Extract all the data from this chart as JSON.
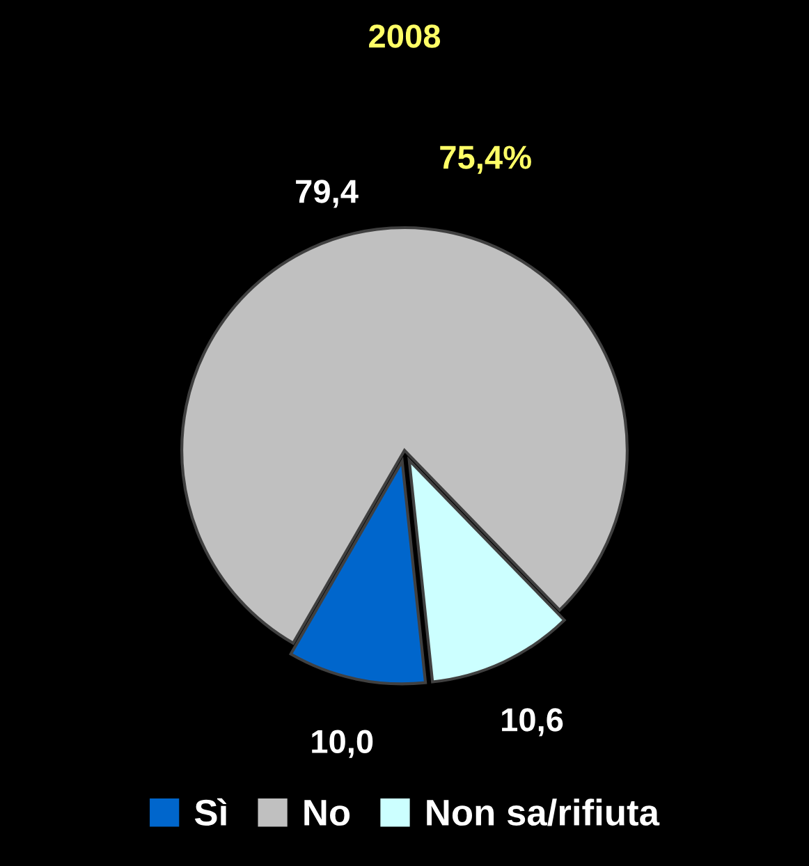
{
  "chart_data": {
    "type": "pie",
    "title": "2008",
    "categories": [
      "Sì",
      "No",
      "Non sa/rifiuta"
    ],
    "values": [
      10.0,
      79.4,
      10.6
    ],
    "value_labels": [
      "10,0",
      "79,4",
      "10,6"
    ],
    "colors": [
      "#0066cc",
      "#c0c0c0",
      "#ccffff"
    ],
    "annotations": [
      "75,4%"
    ],
    "legend": "bottom"
  }
}
